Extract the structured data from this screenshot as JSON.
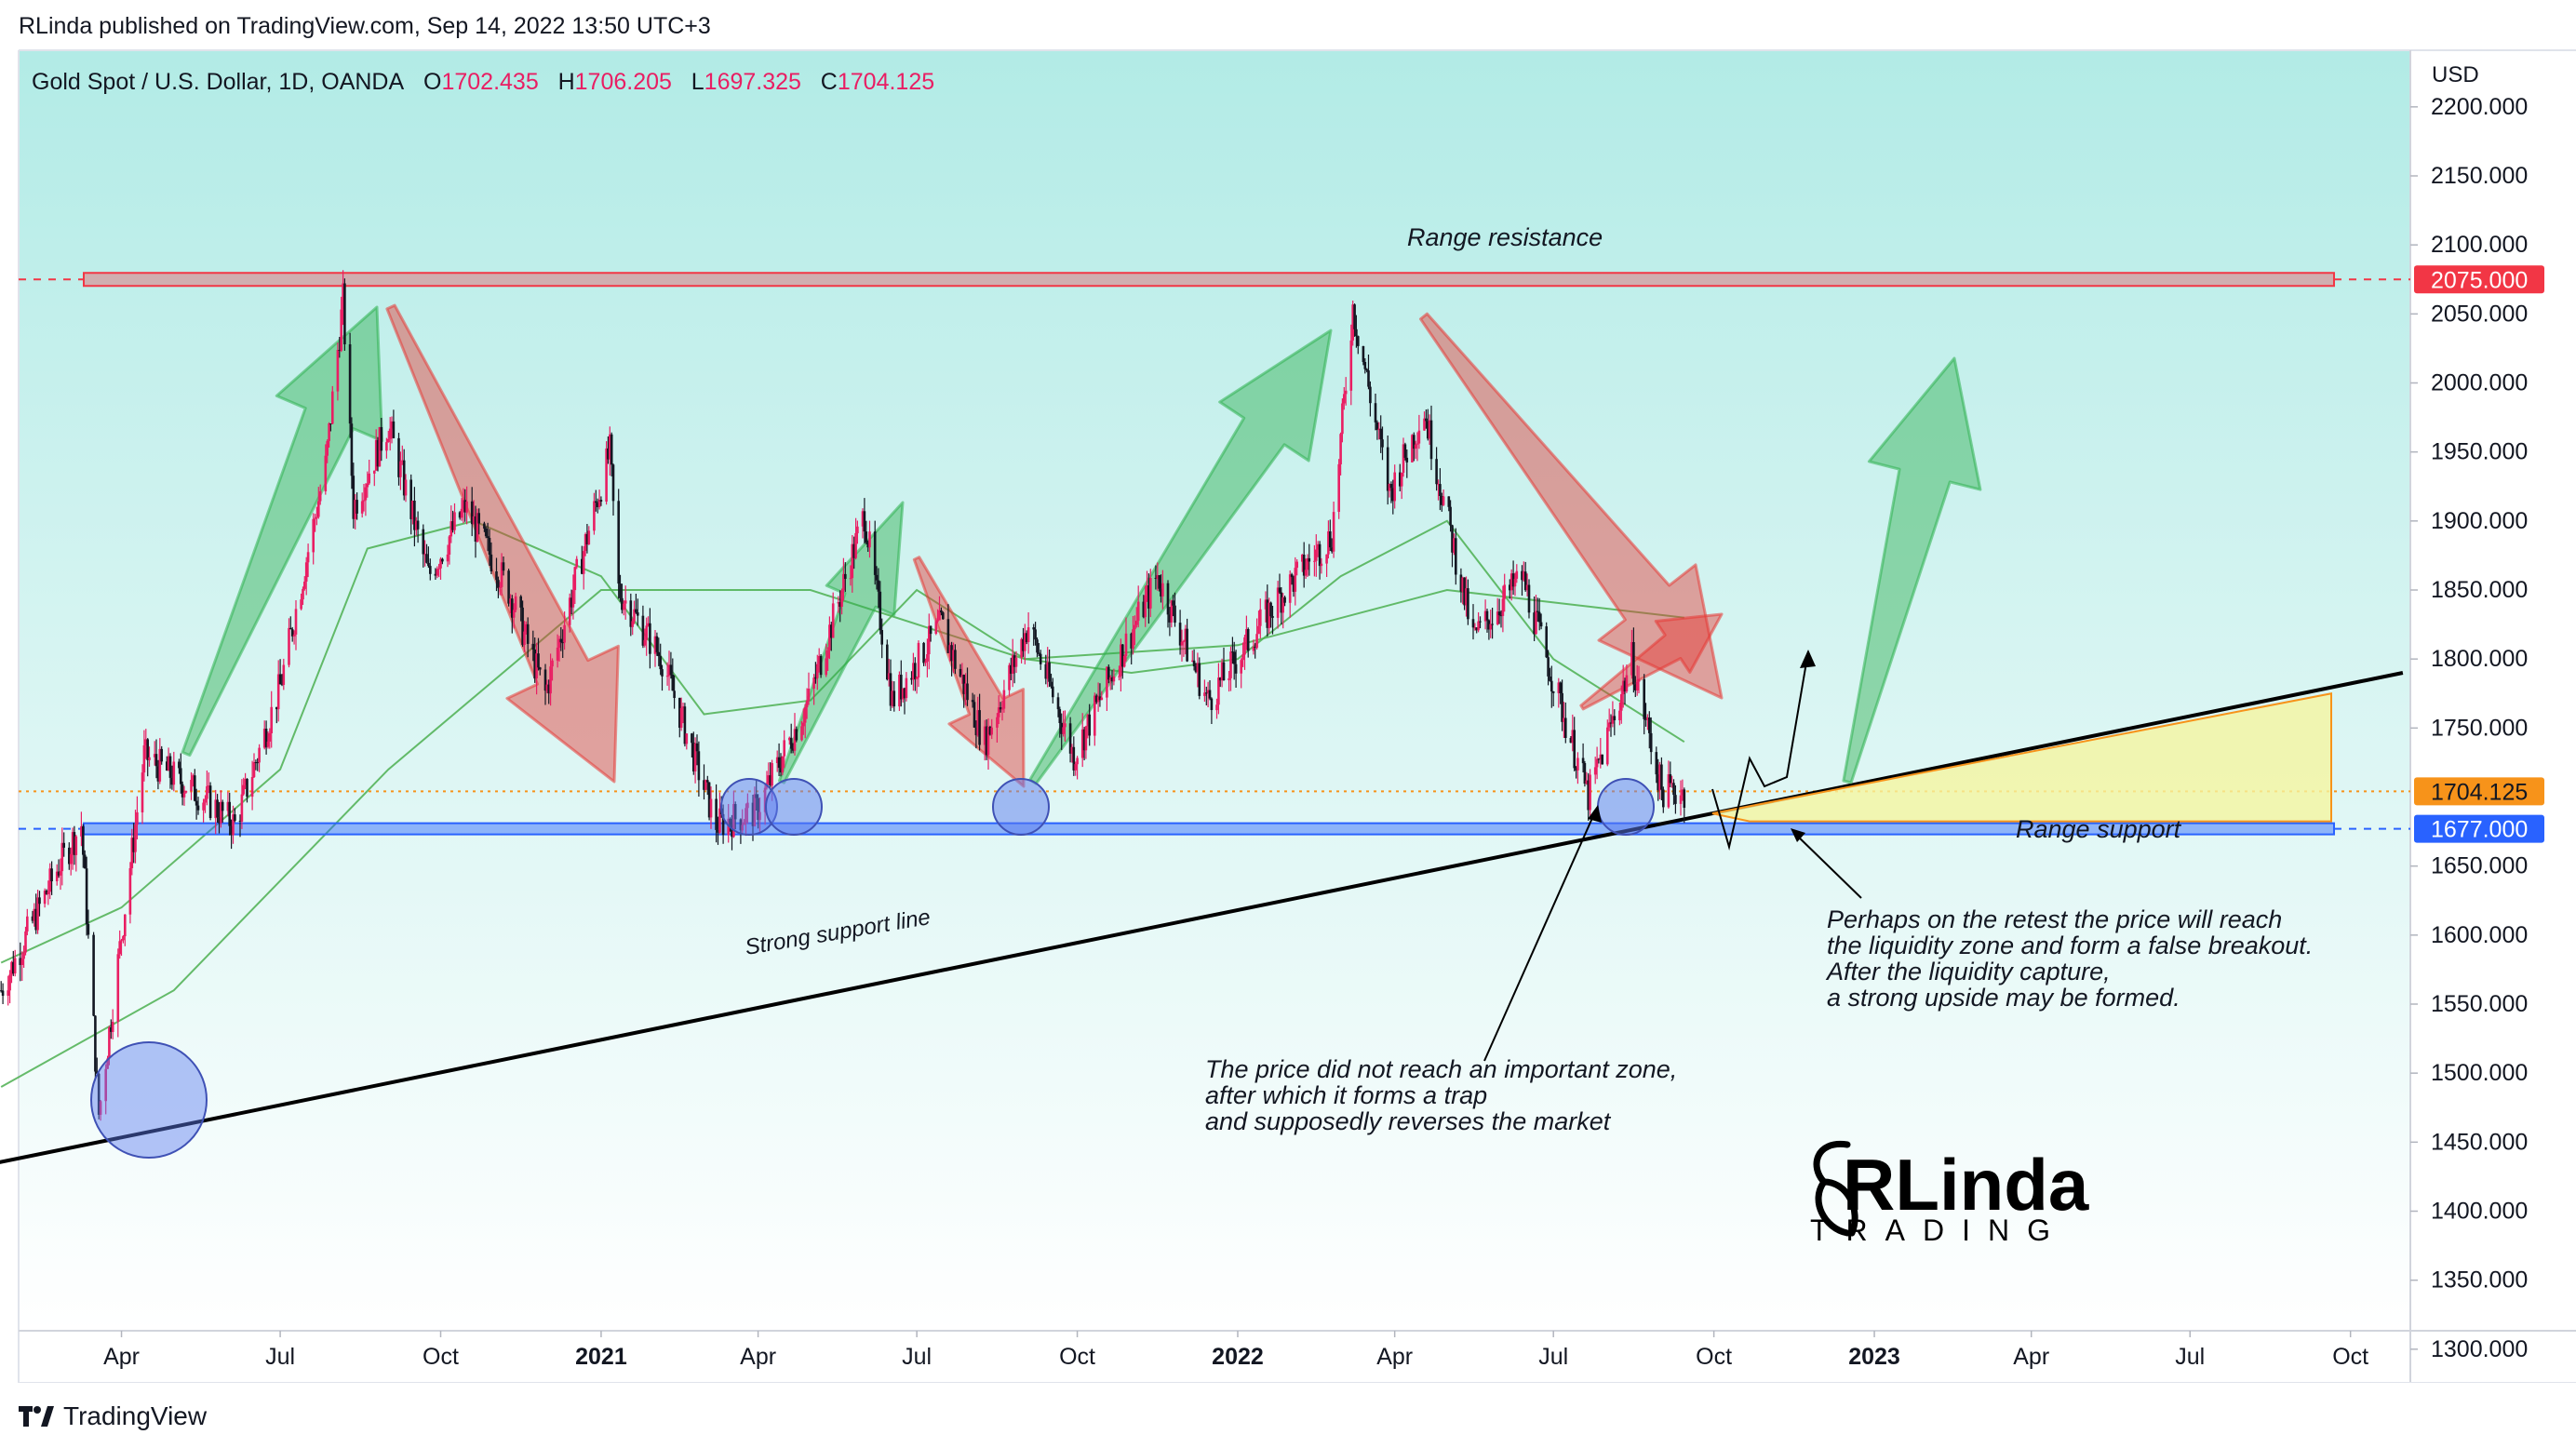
{
  "header": {
    "publisher": "RLinda published on TradingView.com, Sep 14, 2022 13:50 UTC+3"
  },
  "legend": {
    "symbol": "Gold Spot / U.S. Dollar, 1D, OANDA",
    "open_label": "O",
    "open": "1702.435",
    "high_label": "H",
    "high": "1706.205",
    "low_label": "L",
    "low": "1697.325",
    "close_label": "C",
    "close": "1704.125"
  },
  "footer": {
    "brand": "TradingView"
  },
  "logo": {
    "text": "RLinda",
    "subtext": "TRADING"
  },
  "colors": {
    "bull": "#e91e63",
    "bear": "#131722",
    "resistance": "#f23645",
    "support": "#2962ff",
    "price_tag": "#f7931a",
    "ma": "#4caf50",
    "bg_top": "#b2ebe6",
    "bg_bottom": "#ffffff"
  },
  "chart_data": {
    "type": "candlestick",
    "currency": "USD",
    "x_ticks": [
      "Apr",
      "Jul",
      "Oct",
      "2021",
      "Apr",
      "Jul",
      "Oct",
      "2022",
      "Apr",
      "Jul",
      "Oct",
      "2023",
      "Apr",
      "Jul",
      "Oct"
    ],
    "x_tick_dates": [
      "2020-04",
      "2020-07",
      "2020-10",
      "2021-01",
      "2021-04",
      "2021-07",
      "2021-10",
      "2022-01",
      "2022-04",
      "2022-07",
      "2022-10",
      "2023-01",
      "2023-04",
      "2023-07",
      "2023-10"
    ],
    "y_ticks": [
      "2200.000",
      "2150.000",
      "2100.000",
      "2050.000",
      "2000.000",
      "1950.000",
      "1900.000",
      "1850.000",
      "1800.000",
      "1750.000",
      "1650.000",
      "1600.000",
      "1550.000",
      "1500.000",
      "1450.000",
      "1400.000",
      "1350.000",
      "1300.000"
    ],
    "y_range": [
      1280,
      2240
    ],
    "price_series": {
      "dates": [
        "2020-01-23",
        "2020-02-25",
        "2020-03-09",
        "2020-03-19",
        "2020-04-14",
        "2020-05-18",
        "2020-06-05",
        "2020-07-01",
        "2020-07-27",
        "2020-08-06",
        "2020-08-12",
        "2020-09-01",
        "2020-09-24",
        "2020-10-15",
        "2020-11-09",
        "2020-11-30",
        "2021-01-06",
        "2021-01-11",
        "2021-02-05",
        "2021-03-08",
        "2021-03-31",
        "2021-04-30",
        "2021-06-01",
        "2021-06-17",
        "2021-07-15",
        "2021-08-09",
        "2021-09-03",
        "2021-09-29",
        "2021-11-16",
        "2021-12-15",
        "2022-01-25",
        "2022-02-24",
        "2022-03-08",
        "2022-03-29",
        "2022-04-18",
        "2022-05-16",
        "2022-06-13",
        "2022-07-21",
        "2022-08-15",
        "2022-09-01",
        "2022-09-14"
      ],
      "closes": [
        1560,
        1650,
        1680,
        1470,
        1730,
        1700,
        1680,
        1780,
        1940,
        2060,
        1910,
        1970,
        1860,
        1910,
        1850,
        1775,
        1950,
        1850,
        1800,
        1680,
        1690,
        1770,
        1905,
        1770,
        1825,
        1740,
        1825,
        1730,
        1860,
        1770,
        1845,
        1890,
        2055,
        1920,
        1980,
        1815,
        1860,
        1700,
        1800,
        1705,
        1704
      ]
    },
    "ma_fast": {
      "dates": [
        "2020-01-23",
        "2020-04-01",
        "2020-07-01",
        "2020-08-20",
        "2020-10-20",
        "2021-01-01",
        "2021-03-01",
        "2021-05-01",
        "2021-07-01",
        "2021-09-01",
        "2021-11-01",
        "2022-01-01",
        "2022-03-01",
        "2022-05-01",
        "2022-07-01",
        "2022-09-14"
      ],
      "values": [
        1580,
        1620,
        1720,
        1880,
        1900,
        1860,
        1760,
        1770,
        1850,
        1800,
        1790,
        1800,
        1860,
        1900,
        1800,
        1740
      ]
    },
    "ma_slow": {
      "dates": [
        "2020-01-23",
        "2020-05-01",
        "2020-09-01",
        "2021-01-01",
        "2021-05-01",
        "2021-09-01",
        "2022-01-01",
        "2022-05-01",
        "2022-09-14"
      ],
      "values": [
        1490,
        1560,
        1720,
        1850,
        1850,
        1800,
        1810,
        1850,
        1830
      ]
    },
    "levels": {
      "resistance": 2075,
      "support": 1677,
      "current": 1704.125,
      "resistance_label": "2075.000",
      "support_label": "1677.000",
      "current_label": "1704.125"
    },
    "trendline": {
      "start": [
        "2020-01-01",
        1430
      ],
      "end": [
        "2023-10-31",
        1790
      ]
    },
    "annotations": {
      "range_resistance": "Range resistance",
      "range_support": "Range support",
      "strong_support": "Strong support line",
      "trap_note": [
        "The price did not reach an important zone,",
        "after which it forms a trap",
        "and supposedly reverses the market"
      ],
      "retest_note": [
        "Perhaps on the retest the price will reach",
        "the liquidity zone and form a false breakout.",
        "After the liquidity capture,",
        "a strong upside may be formed."
      ]
    }
  }
}
